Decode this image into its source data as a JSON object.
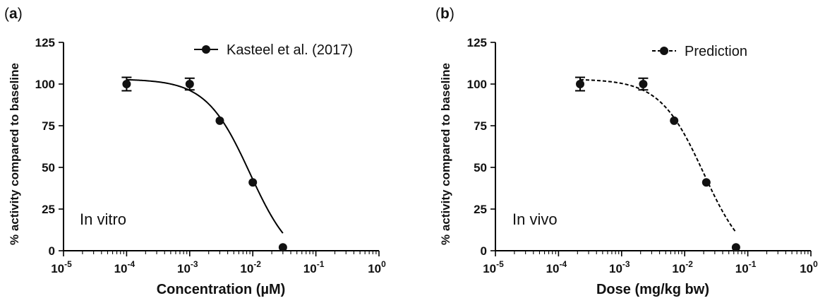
{
  "chart_data": [
    {
      "type": "line",
      "panel_label": "(a)",
      "annotation": "In vitro",
      "xlabel": "Concentration (µM)",
      "ylabel": "% activity compared to baseline",
      "xscale": "log",
      "xlim": [
        1e-05,
        1
      ],
      "ylim": [
        0,
        125
      ],
      "x_tick_exponents": [
        "-5",
        "-4",
        "-3",
        "-2",
        "-1",
        "0"
      ],
      "y_ticks": [
        "0",
        "25",
        "50",
        "75",
        "100",
        "125"
      ],
      "legend": "top-right",
      "series": [
        {
          "name": "Kasteel et al. (2017)",
          "line_style": "solid",
          "points": [
            {
              "x": 0.0001,
              "y": 100,
              "err": 4
            },
            {
              "x": 0.001,
              "y": 100,
              "err": 3.5
            },
            {
              "x": 0.003,
              "y": 78,
              "err": 0
            },
            {
              "x": 0.01,
              "y": 41,
              "err": 0
            },
            {
              "x": 0.03,
              "y": 2,
              "err": 0
            }
          ],
          "fit": {
            "top": 103,
            "bottom": -10,
            "ec50": 0.009,
            "hill": 1.25
          }
        }
      ]
    },
    {
      "type": "line",
      "panel_label": "(b)",
      "annotation": "In vivo",
      "xlabel": "Dose (mg/kg bw)",
      "ylabel": "% activity compared to baseline",
      "xscale": "log",
      "xlim": [
        1e-05,
        1
      ],
      "ylim": [
        0,
        125
      ],
      "x_tick_exponents": [
        "-5",
        "-4",
        "-3",
        "-2",
        "-1",
        "0"
      ],
      "y_ticks": [
        "0",
        "25",
        "50",
        "75",
        "100",
        "125"
      ],
      "legend": "top-right",
      "series": [
        {
          "name": "Prediction",
          "line_style": "dashed",
          "points": [
            {
              "x": 0.00022,
              "y": 100,
              "err": 4
            },
            {
              "x": 0.0022,
              "y": 100,
              "err": 3.5
            },
            {
              "x": 0.0068,
              "y": 78,
              "err": 0
            },
            {
              "x": 0.022,
              "y": 41,
              "err": 0
            },
            {
              "x": 0.065,
              "y": 2,
              "err": 0
            }
          ],
          "fit": {
            "top": 103,
            "bottom": -10,
            "ec50": 0.02,
            "hill": 1.25
          }
        }
      ]
    }
  ]
}
